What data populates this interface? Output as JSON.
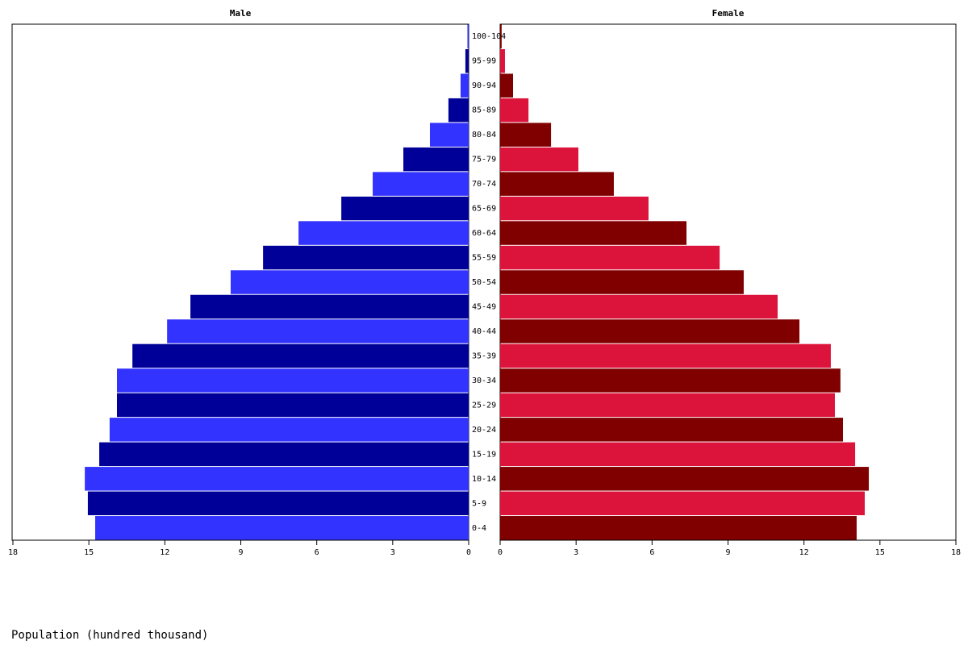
{
  "chart_data": {
    "type": "pyramid",
    "axis_label": "Population (hundred thousand)",
    "categories": [
      "0-4",
      "5-9",
      "10-14",
      "15-19",
      "20-24",
      "25-29",
      "30-34",
      "35-39",
      "40-44",
      "45-49",
      "50-54",
      "55-59",
      "60-64",
      "65-69",
      "70-74",
      "75-79",
      "80-84",
      "85-89",
      "90-94",
      "95-99",
      "100-104"
    ],
    "series": [
      {
        "name": "Male",
        "colors": [
          "#3333ff",
          "#000099"
        ],
        "values": [
          14.75,
          15.04,
          15.16,
          14.59,
          14.18,
          13.89,
          13.89,
          13.28,
          11.91,
          10.99,
          9.4,
          8.12,
          6.72,
          5.03,
          3.79,
          2.58,
          1.53,
          0.8,
          0.32,
          0.13,
          0.05
        ]
      },
      {
        "name": "Female",
        "colors": [
          "#800000",
          "#dc143c"
        ],
        "values": [
          14.08,
          14.4,
          14.56,
          14.02,
          13.54,
          13.22,
          13.44,
          13.06,
          11.82,
          10.96,
          9.62,
          8.67,
          7.36,
          5.86,
          4.49,
          3.09,
          2.01,
          1.12,
          0.51,
          0.19,
          0.06
        ]
      }
    ],
    "xlim": [
      0,
      18
    ],
    "xticks": [
      0,
      3,
      6,
      9,
      12,
      15,
      18
    ]
  }
}
